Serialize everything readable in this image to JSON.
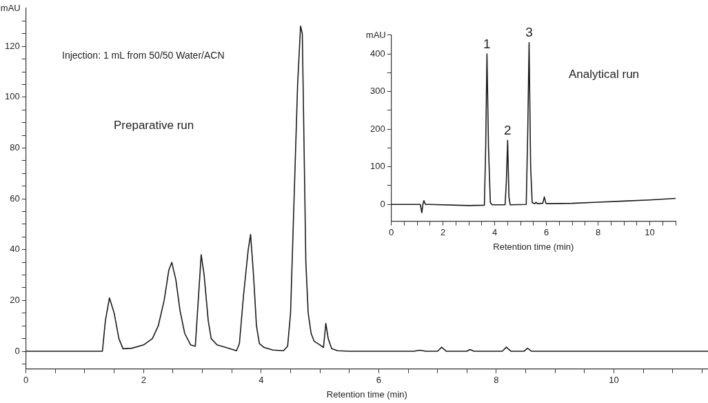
{
  "chart_data": [
    {
      "type": "line",
      "xlabel": "Retention time (min)",
      "ylabel": "mAU",
      "xlim": [
        0,
        11.6
      ],
      "ylim": [
        -7,
        135
      ],
      "xticks": [
        0,
        {
          "value": 0.5,
          "label": null
        },
        {
          "value": 1,
          "label": null
        },
        {
          "value": 1.5,
          "label": null
        },
        2,
        {
          "value": 2.5,
          "label": null
        },
        {
          "value": 3,
          "label": null
        },
        {
          "value": 3.5,
          "label": null
        },
        4,
        {
          "value": 4.5,
          "label": null
        },
        {
          "value": 5,
          "label": null
        },
        {
          "value": 5.5,
          "label": null
        },
        6,
        {
          "value": 6.5,
          "label": null
        },
        {
          "value": 7,
          "label": null
        },
        {
          "value": 7.5,
          "label": null
        },
        8,
        {
          "value": 8.5,
          "label": null
        },
        {
          "value": 9,
          "label": null
        },
        {
          "value": 9.5,
          "label": null
        },
        10,
        {
          "value": 10.5,
          "label": null
        },
        {
          "value": 11,
          "label": null
        },
        {
          "value": 11.5,
          "label": null
        }
      ],
      "yticks": [
        {
          "value": -5,
          "label": null
        },
        0,
        {
          "value": 5,
          "label": null
        },
        {
          "value": 10,
          "label": null
        },
        {
          "value": 15,
          "label": null
        },
        20,
        {
          "value": 25,
          "label": null
        },
        {
          "value": 30,
          "label": null
        },
        {
          "value": 35,
          "label": null
        },
        40,
        {
          "value": 45,
          "label": null
        },
        {
          "value": 50,
          "label": null
        },
        {
          "value": 55,
          "label": null
        },
        60,
        {
          "value": 65,
          "label": null
        },
        {
          "value": 70,
          "label": null
        },
        {
          "value": 75,
          "label": null
        },
        80,
        {
          "value": 85,
          "label": null
        },
        {
          "value": 90,
          "label": null
        },
        {
          "value": 95,
          "label": null
        },
        100,
        {
          "value": 105,
          "label": null
        },
        {
          "value": 110,
          "label": null
        },
        {
          "value": 115,
          "label": null
        },
        120,
        {
          "value": 125,
          "label": null
        },
        {
          "value": 130,
          "label": null
        }
      ],
      "grid": false,
      "marker": "none",
      "line_style": "solid",
      "annotations": [
        "Injection: 1 mL from 50/50 Water/ACN",
        "Preparative run"
      ],
      "series": [
        {
          "color": "#1a1a1a",
          "x": [
            0,
            1.3,
            1.35,
            1.42,
            1.5,
            1.58,
            1.65,
            1.8,
            2.0,
            2.15,
            2.25,
            2.35,
            2.43,
            2.48,
            2.55,
            2.62,
            2.7,
            2.8,
            2.88,
            2.93,
            2.98,
            3.03,
            3.1,
            3.15,
            3.25,
            3.4,
            3.58,
            3.63,
            3.7,
            3.78,
            3.82,
            3.87,
            3.92,
            3.97,
            4.05,
            4.2,
            4.38,
            4.45,
            4.5,
            4.56,
            4.62,
            4.67,
            4.7,
            4.73,
            4.76,
            4.8,
            4.85,
            4.9,
            5.0,
            5.06,
            5.1,
            5.14,
            5.2,
            5.3,
            5.5,
            6.6,
            6.7,
            6.8,
            7.0,
            7.07,
            7.15,
            7.5,
            7.55,
            7.62,
            8.1,
            8.17,
            8.25,
            8.47,
            8.53,
            8.6,
            11.6
          ],
          "values": [
            0,
            0,
            12,
            21,
            15,
            5,
            1,
            1.2,
            2.5,
            5,
            10,
            20,
            32,
            35,
            28,
            16,
            7,
            2.5,
            2,
            20,
            38,
            30,
            12,
            5,
            2.5,
            1.5,
            0.2,
            3,
            22,
            40,
            46,
            30,
            10,
            3,
            1.5,
            0.5,
            0.2,
            2,
            15,
            60,
            105,
            128,
            125,
            80,
            35,
            15,
            7,
            4,
            2.5,
            1.5,
            11,
            5,
            1,
            0.2,
            0,
            0,
            0.4,
            0,
            0,
            1.6,
            0,
            0,
            0.7,
            0,
            0,
            1.6,
            0,
            0,
            1.2,
            0,
            0
          ]
        }
      ]
    },
    {
      "type": "line",
      "xlabel": "Retention time (min)",
      "ylabel": "mAU",
      "xlim": [
        0,
        11
      ],
      "ylim": [
        -45,
        450
      ],
      "xticks": [
        0,
        {
          "value": 0.5,
          "label": null
        },
        {
          "value": 1,
          "label": null
        },
        {
          "value": 1.5,
          "label": null
        },
        2,
        {
          "value": 2.5,
          "label": null
        },
        {
          "value": 3,
          "label": null
        },
        {
          "value": 3.5,
          "label": null
        },
        4,
        {
          "value": 4.5,
          "label": null
        },
        {
          "value": 5,
          "label": null
        },
        {
          "value": 5.5,
          "label": null
        },
        6,
        {
          "value": 6.5,
          "label": null
        },
        {
          "value": 7,
          "label": null
        },
        {
          "value": 7.5,
          "label": null
        },
        8,
        {
          "value": 8.5,
          "label": null
        },
        {
          "value": 9,
          "label": null
        },
        {
          "value": 9.5,
          "label": null
        },
        10,
        {
          "value": 10.5,
          "label": null
        },
        {
          "value": 11,
          "label": null
        }
      ],
      "yticks": [
        0,
        {
          "value": 50,
          "label": null
        },
        100,
        {
          "value": 150,
          "label": null
        },
        200,
        {
          "value": 250,
          "label": null
        },
        300,
        {
          "value": 350,
          "label": null
        },
        400,
        {
          "value": 450,
          "label": null
        }
      ],
      "grid": false,
      "marker": "none",
      "line_style": "solid",
      "annotations": [
        {
          "text": "1",
          "x": 3.7,
          "y": 400
        },
        {
          "text": "2",
          "x": 4.5,
          "y": 170
        },
        {
          "text": "3",
          "x": 5.33,
          "y": 430
        },
        "Analytical run"
      ],
      "series": [
        {
          "color": "#1a1a1a",
          "x": [
            0,
            1.12,
            1.18,
            1.22,
            1.26,
            1.32,
            1.5,
            3.0,
            3.6,
            3.65,
            3.7,
            3.76,
            3.83,
            3.9,
            4.4,
            4.45,
            4.5,
            4.55,
            4.6,
            5.22,
            5.28,
            5.33,
            5.39,
            5.45,
            5.55,
            5.6,
            5.65,
            5.86,
            5.92,
            5.98,
            6.1,
            7,
            8,
            9,
            10,
            11
          ],
          "values": [
            0,
            0,
            -22,
            0,
            10,
            0,
            0,
            -3,
            -2,
            150,
            400,
            150,
            5,
            -1,
            -1,
            60,
            170,
            20,
            -1,
            0,
            200,
            430,
            100,
            5,
            2,
            6,
            2,
            3,
            20,
            3,
            2,
            3,
            6,
            9,
            12,
            16
          ]
        }
      ]
    }
  ]
}
